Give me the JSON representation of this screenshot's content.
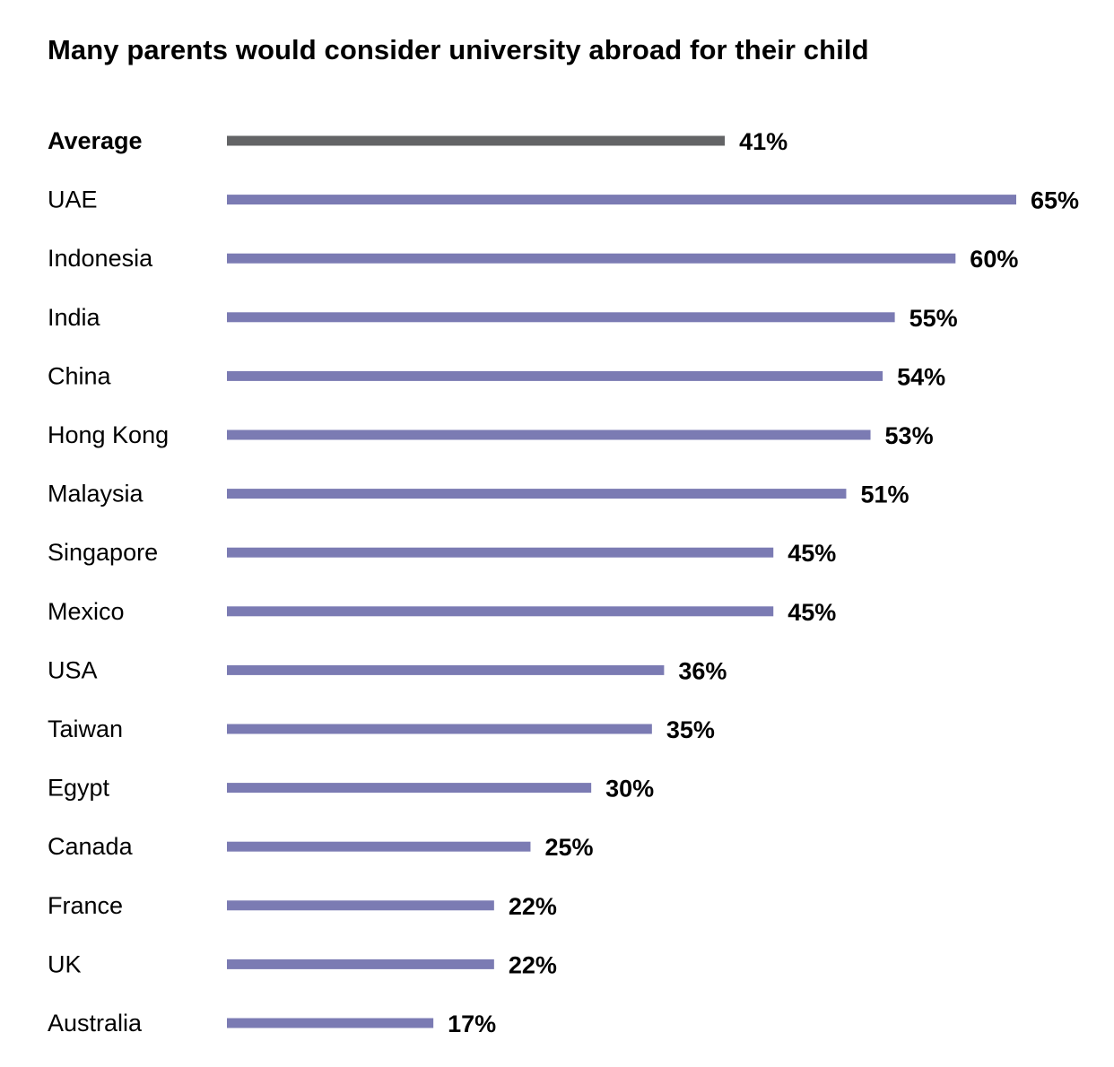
{
  "chart_data": {
    "type": "bar",
    "orientation": "horizontal",
    "title": "Many parents would consider university abroad for their child",
    "xlabel": "",
    "ylabel": "",
    "unit": "%",
    "xlim": [
      0,
      65
    ],
    "grid": false,
    "legend": "none",
    "categories": [
      "Average",
      "UAE",
      "Indonesia",
      "India",
      "China",
      "Hong Kong",
      "Malaysia",
      "Singapore",
      "Mexico",
      "USA",
      "Taiwan",
      "Egypt",
      "Canada",
      "France",
      "UK",
      "Australia"
    ],
    "values": [
      41,
      65,
      60,
      55,
      54,
      53,
      51,
      45,
      45,
      36,
      35,
      30,
      25,
      22,
      22,
      17
    ],
    "value_labels": [
      "41%",
      "65%",
      "60%",
      "55%",
      "54%",
      "53%",
      "51%",
      "45%",
      "45%",
      "36%",
      "35%",
      "30%",
      "25%",
      "22%",
      "22%",
      "17%"
    ],
    "highlight_category": "Average",
    "colors": {
      "highlight": "#636466",
      "bar": "#7b7bb3",
      "text": "#000000"
    }
  }
}
